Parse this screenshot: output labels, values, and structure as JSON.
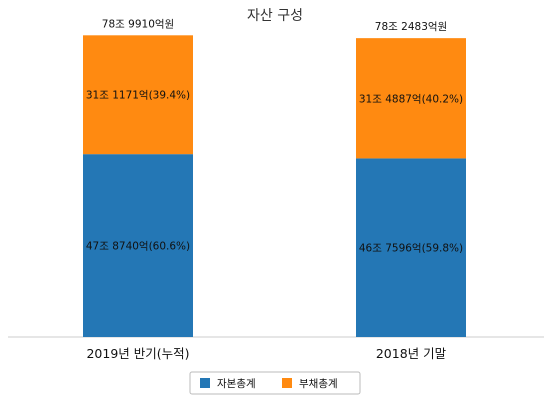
{
  "chart_data": {
    "type": "bar",
    "stacked": true,
    "title": "자산 구성",
    "categories": [
      "2019년 반기(누적)",
      "2018년 기말"
    ],
    "totals": [
      789910,
      782483
    ],
    "total_labels": [
      "78조 9910억원",
      "78조 2483억원"
    ],
    "series": [
      {
        "name": "자본총계",
        "color": "#2477B5",
        "values": [
          478740,
          467596
        ],
        "labels": [
          "47조 8740억(60.6%)",
          "46조 7596억(59.8%)"
        ]
      },
      {
        "name": "부채총계",
        "color": "#FF8A11",
        "values": [
          311171,
          314887
        ],
        "labels": [
          "31조 1171억(39.4%)",
          "31조 4887억(40.2%)"
        ]
      }
    ],
    "ylim": [
      0,
      830000
    ],
    "grid": false,
    "legend": "bottom-center"
  }
}
